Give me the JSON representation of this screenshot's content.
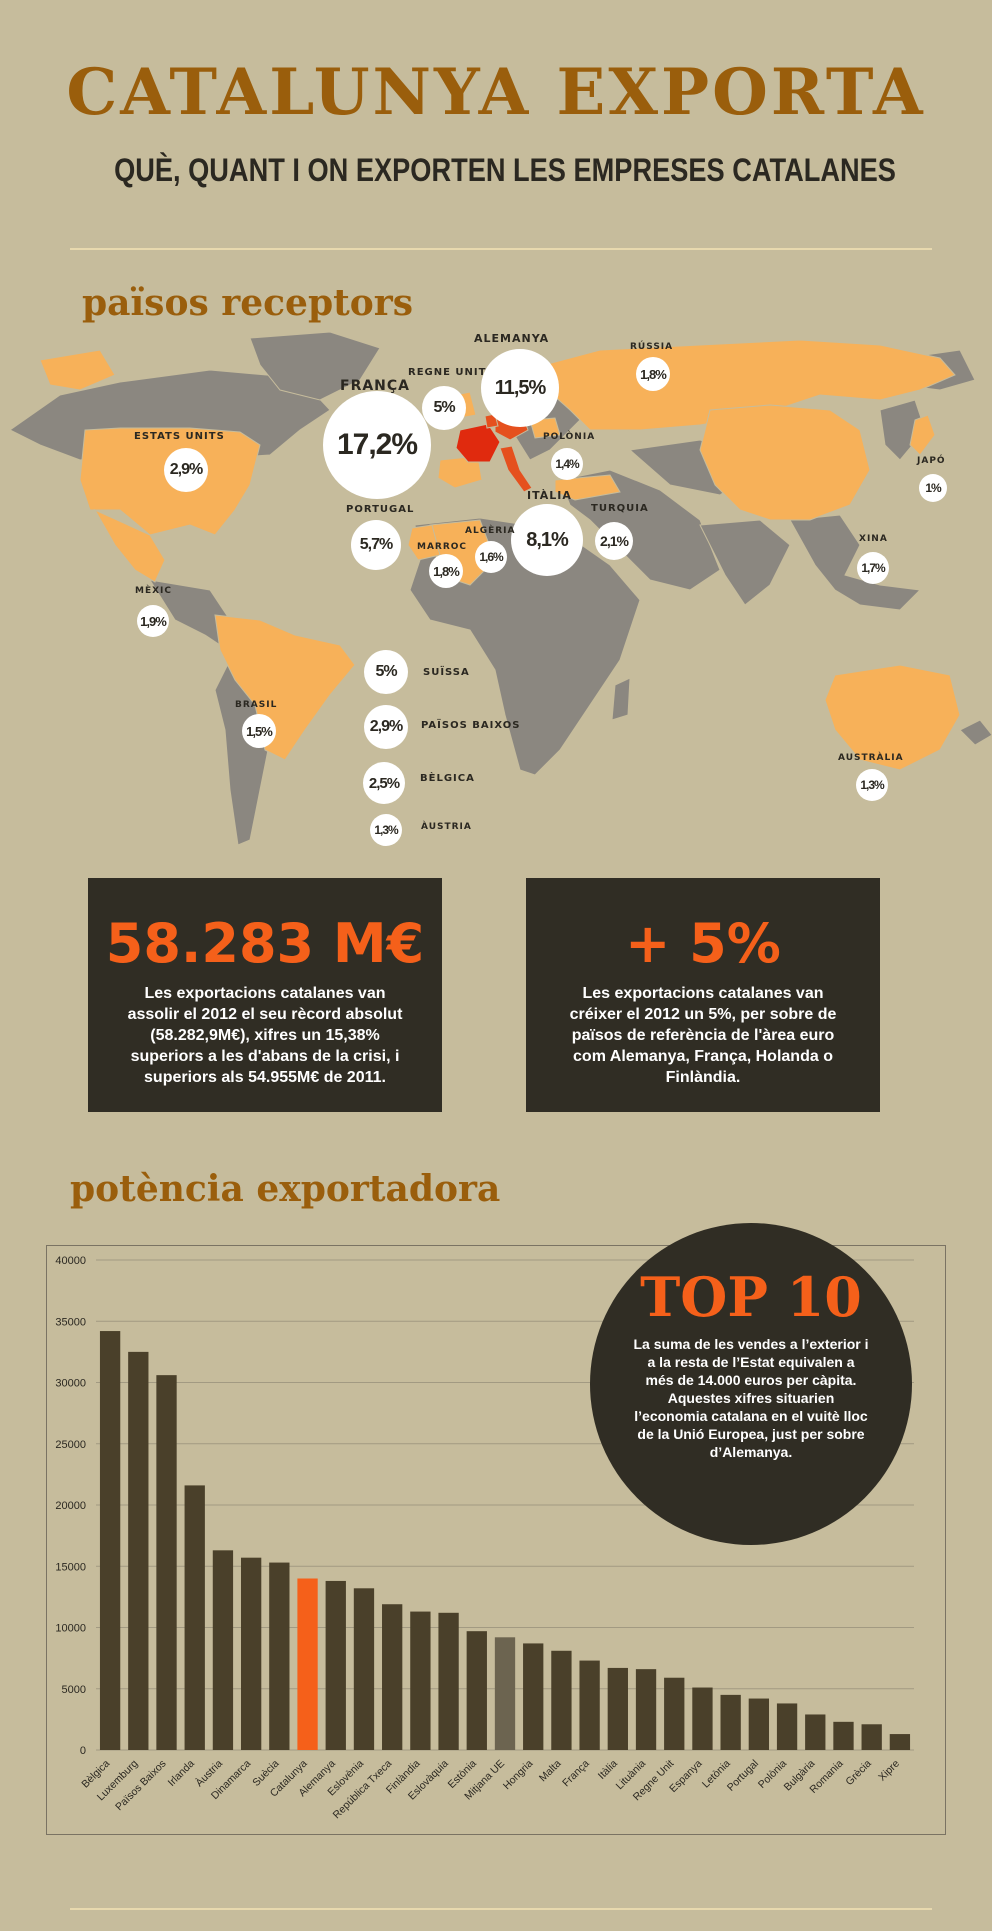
{
  "header": {
    "title": "CATALUNYA EXPORTA",
    "subtitle": "QUÈ, QUANT I ON EXPORTEN LES EMPRESES CATALANES"
  },
  "colors": {
    "background": "#c6bc9c",
    "title": "#9a5e0c",
    "dark": "#302d24",
    "accent": "#f5601a",
    "highlight_country": "#f7b159",
    "map_gray": "#8b8780",
    "bar": "#4a402a"
  },
  "map_section": {
    "heading": "països receptors",
    "countries": [
      {
        "name": "FRANÇA",
        "value": "17,2%"
      },
      {
        "name": "ALEMANYA",
        "value": "11,5%"
      },
      {
        "name": "ITÀLIA",
        "value": "8,1%"
      },
      {
        "name": "PORTUGAL",
        "value": "5,7%"
      },
      {
        "name": "REGNE UNIT",
        "value": "5%"
      },
      {
        "name": "SUÏSSA",
        "value": "5%"
      },
      {
        "name": "ESTATS UNITS",
        "value": "2,9%"
      },
      {
        "name": "PAÏSOS BAIXOS",
        "value": "2,9%"
      },
      {
        "name": "BÈLGICA",
        "value": "2,5%"
      },
      {
        "name": "TURQUIA",
        "value": "2,1%"
      },
      {
        "name": "MÈXIC",
        "value": "1,9%"
      },
      {
        "name": "RÚSSIA",
        "value": "1,8%"
      },
      {
        "name": "MARROC",
        "value": "1,8%"
      },
      {
        "name": "XINA",
        "value": "1,7%"
      },
      {
        "name": "ALGÈRIA",
        "value": "1,6%"
      },
      {
        "name": "BRASIL",
        "value": "1,5%"
      },
      {
        "name": "POLÒNIA",
        "value": "1,4%"
      },
      {
        "name": "ÀUSTRIA",
        "value": "1,3%"
      },
      {
        "name": "AUSTRÀLIA",
        "value": "1,3%"
      },
      {
        "name": "JAPÓ",
        "value": "1%"
      }
    ]
  },
  "stats": [
    {
      "big": "58.283 M€",
      "text": "Les exportacions catalanes van assolir el 2012 el seu rècord absolut (58.282,9M€), xifres un 15,38% superiors a les d'abans de la crisi, i superiors als 54.955M€ de 2011."
    },
    {
      "big": "+ 5%",
      "text": "Les exportacions catalanes van créixer el 2012 un 5%, per sobre de països de referència de l'àrea euro com Alemanya, França, Holanda o Finlàndia."
    }
  ],
  "chart_section": {
    "heading": "potència exportadora",
    "top10_title": "TOP 10",
    "top10_text": "La suma de les vendes a l’exterior i a la resta de l’Estat equivalen a més de 14.000 euros per càpita. Aquestes xifres situarien l’economia catalana en el vuitè lloc de la Unió Europea, just per sobre d’Alemanya."
  },
  "chart_data": {
    "type": "bar",
    "categories": [
      "Bèlgica",
      "Luxemburg",
      "Països Baixos",
      "Irlanda",
      "Àustria",
      "Dinamarca",
      "Suècia",
      "Catalunya",
      "Alemanya",
      "Eslovènia",
      "República Txeca",
      "Finlàndia",
      "Eslovàquia",
      "Estònia",
      "Mitjana UE",
      "Hongria",
      "Malta",
      "França",
      "Itàlia",
      "Lituània",
      "Regne Unit",
      "Espanya",
      "Letònia",
      "Portugal",
      "Polònia",
      "Bulgària",
      "Romania",
      "Grècia",
      "Xipre"
    ],
    "values": [
      34200,
      32500,
      30600,
      21600,
      16300,
      15700,
      15300,
      14000,
      13800,
      13200,
      11900,
      11300,
      11200,
      9700,
      9200,
      8700,
      8100,
      7300,
      6700,
      6600,
      5900,
      5100,
      4500,
      4200,
      3800,
      2900,
      2300,
      2100,
      1300
    ],
    "highlight": {
      "Catalunya": "#f5601a",
      "Mitjana UE": "#6c6450"
    },
    "ylim": [
      0,
      40000
    ],
    "yticks": [
      0,
      5000,
      10000,
      15000,
      20000,
      25000,
      30000,
      35000,
      40000
    ],
    "grid": true
  }
}
